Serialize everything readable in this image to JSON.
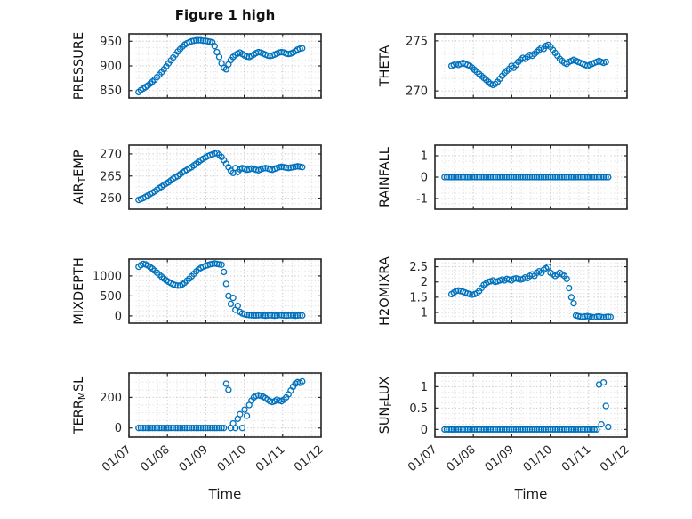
{
  "figure": {
    "title": "Figure 1 high",
    "xlabel": "Time",
    "marker_color": "#0072BD",
    "axis_color": "#262626",
    "grid_color": "#c4c4c4",
    "minor_grid_color": "#dedede",
    "xlim": [
      7,
      12
    ],
    "x_ticks": [
      7,
      8,
      9,
      10,
      11,
      12
    ],
    "x_tick_labels": [
      "01/07",
      "01/08",
      "01/09",
      "01/10",
      "01/11",
      "01/12"
    ]
  },
  "chart_data": [
    {
      "id": "pressure",
      "type": "scatter",
      "ylabel": "PRESSURE",
      "ylabel_parts": [
        {
          "text": "PRESSURE",
          "sub": false
        }
      ],
      "ylim": [
        835,
        965
      ],
      "yticks": [
        850,
        900,
        950
      ],
      "ytick_labels": [
        "850",
        "900",
        "950"
      ],
      "x0": 7.25,
      "xstep": 0.06,
      "y": [
        847,
        851,
        854,
        857,
        860,
        864,
        868,
        872,
        877,
        882,
        887,
        893,
        899,
        905,
        911,
        917,
        923,
        929,
        934,
        939,
        943,
        946,
        948,
        950,
        951,
        952,
        952,
        952,
        951,
        951,
        950,
        949,
        948,
        940,
        928,
        918,
        905,
        896,
        893,
        903,
        912,
        918,
        922,
        925,
        927,
        924,
        921,
        919,
        918,
        920,
        923,
        926,
        928,
        927,
        925,
        923,
        921,
        920,
        921,
        923,
        925,
        927,
        928,
        927,
        925,
        924,
        925,
        927,
        930,
        933,
        935,
        936
      ]
    },
    {
      "id": "theta",
      "type": "scatter",
      "ylabel": "THETA",
      "ylabel_parts": [
        {
          "text": "THETA",
          "sub": false
        }
      ],
      "ylim": [
        269.3,
        275.7
      ],
      "yticks": [
        270,
        275
      ],
      "ytick_labels": [
        "270",
        "275"
      ],
      "x0": 7.43,
      "xstep": 0.06,
      "y": [
        272.5,
        272.6,
        272.7,
        272.6,
        272.7,
        272.8,
        272.7,
        272.6,
        272.5,
        272.3,
        272.1,
        271.9,
        271.7,
        271.5,
        271.3,
        271.1,
        270.9,
        270.7,
        270.6,
        270.7,
        270.9,
        271.2,
        271.5,
        271.8,
        272.0,
        272.2,
        272.5,
        272.3,
        272.6,
        272.9,
        273.1,
        273.3,
        273.2,
        273.4,
        273.6,
        273.5,
        273.7,
        273.9,
        274.1,
        274.3,
        274.2,
        274.5,
        274.6,
        274.4,
        274.1,
        273.8,
        273.5,
        273.2,
        273.0,
        272.8,
        272.7,
        272.9,
        273.0,
        273.1,
        273.0,
        272.9,
        272.8,
        272.7,
        272.6,
        272.5,
        272.6,
        272.7,
        272.8,
        272.9,
        273.0,
        272.9,
        272.8,
        272.9
      ]
    },
    {
      "id": "air-temp",
      "type": "scatter",
      "ylabel": "AIR_TEMP",
      "ylabel_parts": [
        {
          "text": "AIR",
          "sub": false
        },
        {
          "text": "T",
          "sub": true
        },
        {
          "text": "EMP",
          "sub": false
        }
      ],
      "ylim": [
        257.5,
        272
      ],
      "yticks": [
        260,
        265,
        270
      ],
      "ytick_labels": [
        "260",
        "265",
        "270"
      ],
      "x0": 7.25,
      "xstep": 0.06,
      "y": [
        259.6,
        259.8,
        260.0,
        260.3,
        260.6,
        260.9,
        261.2,
        261.5,
        261.9,
        262.3,
        262.6,
        263.0,
        263.3,
        263.6,
        264.0,
        264.4,
        264.7,
        265.0,
        265.4,
        265.8,
        266.1,
        266.4,
        266.7,
        267.0,
        267.4,
        267.8,
        268.2,
        268.6,
        268.9,
        269.2,
        269.5,
        269.7,
        269.9,
        270.1,
        270.2,
        269.8,
        269.3,
        268.6,
        267.8,
        267.0,
        266.2,
        265.7,
        266.8,
        265.9,
        266.5,
        266.8,
        266.6,
        266.4,
        266.5,
        266.7,
        266.6,
        266.4,
        266.3,
        266.5,
        266.7,
        266.8,
        266.7,
        266.5,
        266.4,
        266.6,
        266.8,
        267.0,
        267.1,
        267.0,
        266.9,
        266.8,
        266.9,
        267.0,
        267.1,
        267.2,
        267.1,
        267.0
      ]
    },
    {
      "id": "rainfall",
      "type": "scatter",
      "ylabel": "RAINFALL",
      "ylabel_parts": [
        {
          "text": "RAINFALL",
          "sub": false
        }
      ],
      "ylim": [
        -1.5,
        1.5
      ],
      "yticks": [
        -1,
        0,
        1
      ],
      "ytick_labels": [
        "-1",
        "0",
        "1"
      ],
      "x0": 7.25,
      "xstep": 0.06,
      "y": [
        0,
        0,
        0,
        0,
        0,
        0,
        0,
        0,
        0,
        0,
        0,
        0,
        0,
        0,
        0,
        0,
        0,
        0,
        0,
        0,
        0,
        0,
        0,
        0,
        0,
        0,
        0,
        0,
        0,
        0,
        0,
        0,
        0,
        0,
        0,
        0,
        0,
        0,
        0,
        0,
        0,
        0,
        0,
        0,
        0,
        0,
        0,
        0,
        0,
        0,
        0,
        0,
        0,
        0,
        0,
        0,
        0,
        0,
        0,
        0,
        0,
        0,
        0,
        0,
        0,
        0,
        0,
        0,
        0,
        0,
        0,
        0
      ]
    },
    {
      "id": "mixdepth",
      "type": "scatter",
      "ylabel": "MIXDEPTH",
      "ylabel_parts": [
        {
          "text": "MIXDEPTH",
          "sub": false
        }
      ],
      "ylim": [
        -180,
        1420
      ],
      "yticks": [
        0,
        500,
        1000
      ],
      "ytick_labels": [
        "0",
        "500",
        "1000"
      ],
      "x0": 7.25,
      "xstep": 0.06,
      "y": [
        1230,
        1270,
        1300,
        1290,
        1260,
        1220,
        1180,
        1130,
        1080,
        1030,
        980,
        930,
        890,
        850,
        820,
        790,
        770,
        755,
        760,
        790,
        830,
        880,
        930,
        990,
        1050,
        1110,
        1160,
        1200,
        1230,
        1250,
        1270,
        1290,
        1300,
        1310,
        1300,
        1290,
        1280,
        1100,
        800,
        500,
        300,
        450,
        150,
        250,
        100,
        60,
        40,
        30,
        20,
        15,
        10,
        10,
        15,
        20,
        10,
        5,
        10,
        15,
        10,
        5,
        10,
        20,
        15,
        10,
        5,
        10,
        15,
        10,
        5,
        10,
        15,
        10
      ]
    },
    {
      "id": "h2omixra",
      "type": "scatter",
      "ylabel": "H2OMIXRA",
      "ylabel_parts": [
        {
          "text": "H2OMIXRA",
          "sub": false
        }
      ],
      "ylim": [
        0.65,
        2.75
      ],
      "yticks": [
        1,
        1.5,
        2,
        2.5
      ],
      "ytick_labels": [
        "1",
        "1.5",
        "2",
        "2.5"
      ],
      "x0": 7.43,
      "xstep": 0.06,
      "y": [
        1.6,
        1.65,
        1.7,
        1.72,
        1.7,
        1.68,
        1.65,
        1.62,
        1.6,
        1.58,
        1.6,
        1.63,
        1.7,
        1.8,
        1.9,
        1.95,
        2.0,
        2.02,
        2.05,
        2.0,
        2.02,
        2.05,
        2.08,
        2.05,
        2.1,
        2.08,
        2.05,
        2.1,
        2.12,
        2.1,
        2.08,
        2.1,
        2.15,
        2.12,
        2.2,
        2.25,
        2.2,
        2.3,
        2.35,
        2.3,
        2.4,
        2.45,
        2.5,
        2.3,
        2.25,
        2.2,
        2.25,
        2.3,
        2.25,
        2.2,
        2.1,
        1.8,
        1.5,
        1.3,
        0.9,
        0.88,
        0.86,
        0.85,
        0.87,
        0.88,
        0.86,
        0.85,
        0.84,
        0.86,
        0.87,
        0.85,
        0.84,
        0.85,
        0.86,
        0.85
      ]
    },
    {
      "id": "terr-msl",
      "type": "scatter",
      "ylabel": "TERR_MSL",
      "ylabel_parts": [
        {
          "text": "TERR",
          "sub": false
        },
        {
          "text": "M",
          "sub": true
        },
        {
          "text": "SL",
          "sub": false
        }
      ],
      "ylim": [
        -60,
        360
      ],
      "yticks": [
        0,
        200
      ],
      "ytick_labels": [
        "0",
        "200"
      ],
      "x0": 7.25,
      "xstep": 0.06,
      "y": [
        0,
        0,
        0,
        0,
        0,
        0,
        0,
        0,
        0,
        0,
        0,
        0,
        0,
        0,
        0,
        0,
        0,
        0,
        0,
        0,
        0,
        0,
        0,
        0,
        0,
        0,
        0,
        0,
        0,
        0,
        0,
        0,
        0,
        0,
        0,
        0,
        0,
        0,
        290,
        250,
        0,
        30,
        0,
        60,
        90,
        0,
        120,
        80,
        150,
        180,
        200,
        210,
        215,
        210,
        205,
        195,
        185,
        175,
        170,
        175,
        185,
        180,
        175,
        185,
        200,
        220,
        245,
        270,
        290,
        300,
        295,
        305
      ]
    },
    {
      "id": "sun-flux",
      "type": "scatter",
      "ylabel": "SUN_FLUX",
      "ylabel_parts": [
        {
          "text": "SUN",
          "sub": false
        },
        {
          "text": "F",
          "sub": true
        },
        {
          "text": "LUX",
          "sub": false
        }
      ],
      "ylim": [
        -0.18,
        1.32
      ],
      "yticks": [
        0,
        0.5,
        1
      ],
      "ytick_labels": [
        "0",
        "0.5",
        "1"
      ],
      "x0": 7.25,
      "xstep": 0.06,
      "y": [
        0,
        0,
        0,
        0,
        0,
        0,
        0,
        0,
        0,
        0,
        0,
        0,
        0,
        0,
        0,
        0,
        0,
        0,
        0,
        0,
        0,
        0,
        0,
        0,
        0,
        0,
        0,
        0,
        0,
        0,
        0,
        0,
        0,
        0,
        0,
        0,
        0,
        0,
        0,
        0,
        0,
        0,
        0,
        0,
        0,
        0,
        0,
        0,
        0,
        0,
        0,
        0,
        0,
        0,
        0,
        0,
        0,
        0,
        0,
        0,
        0,
        0,
        0,
        0,
        0,
        0,
        0,
        1.05,
        0.12,
        1.1,
        0.55,
        0.06
      ]
    }
  ]
}
